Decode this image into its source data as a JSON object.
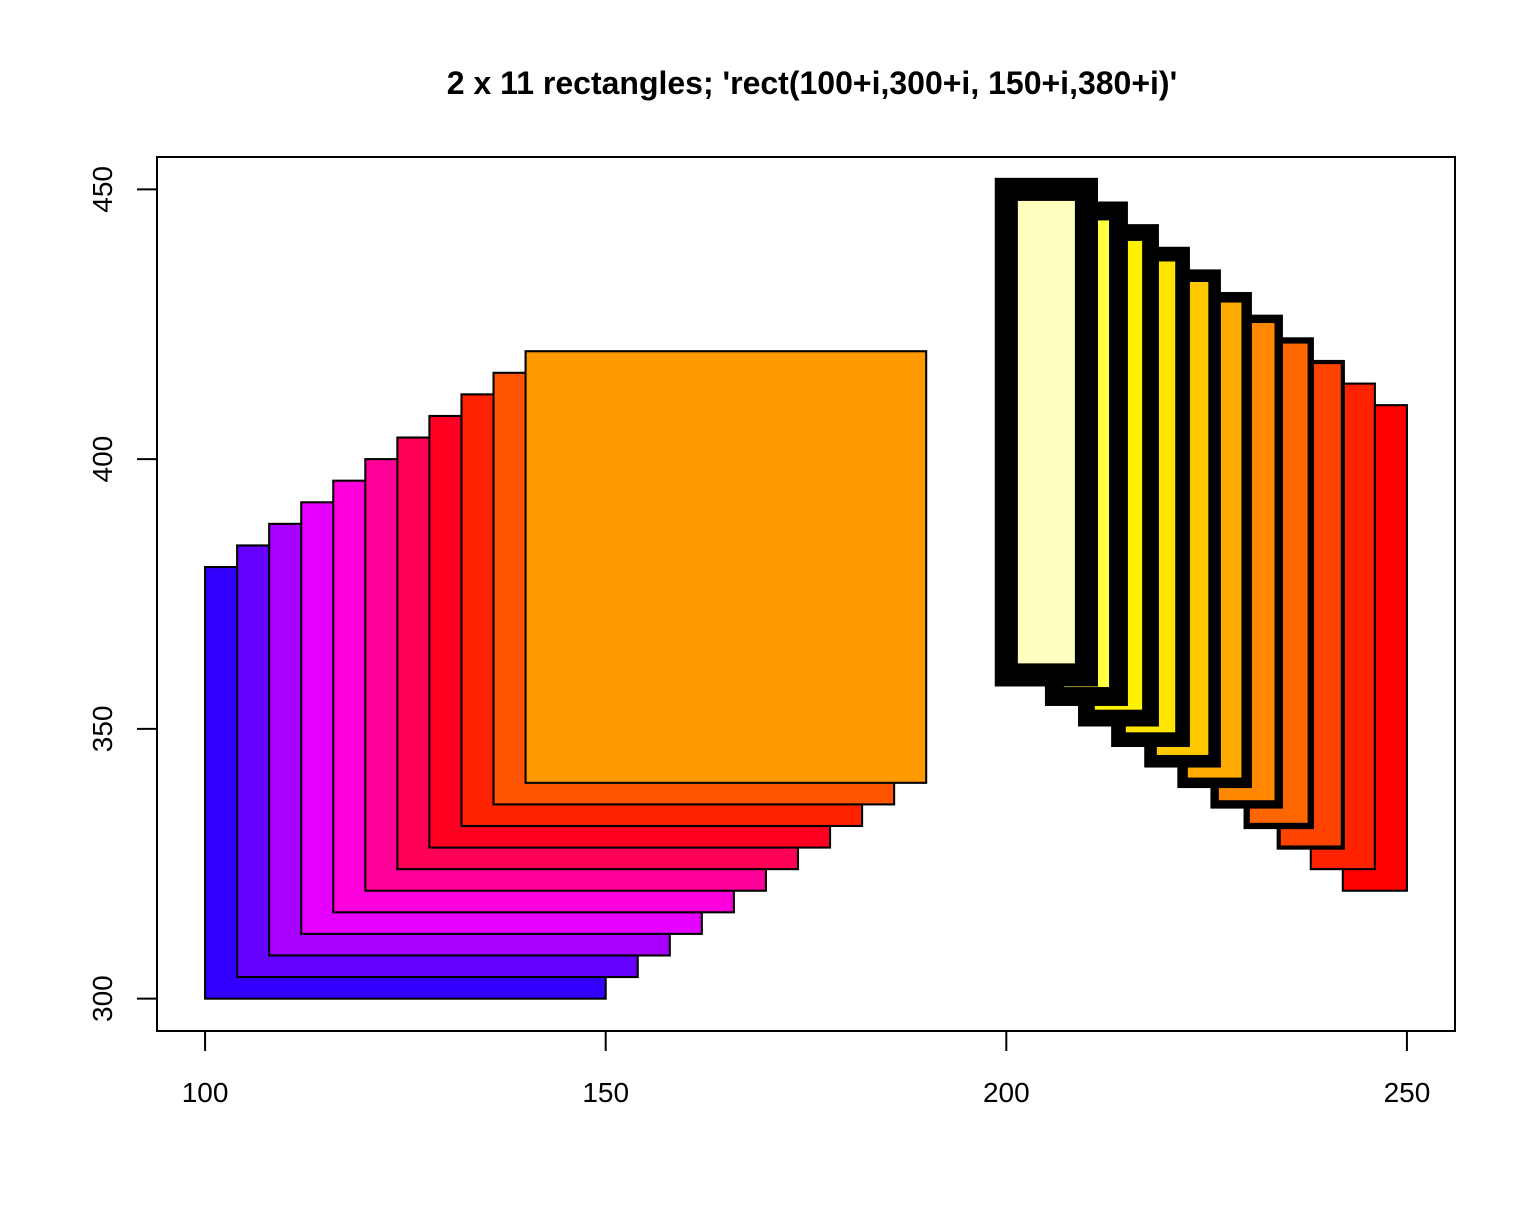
{
  "chart_data": {
    "type": "rect",
    "title": "2 x 11 rectangles; 'rect(100+i,300+i, 150+i,380+i)'",
    "xlabel": "",
    "ylabel": "",
    "xlim": [
      94,
      256
    ],
    "ylim": [
      294,
      456
    ],
    "x_ticks": [
      100,
      150,
      200,
      250
    ],
    "y_ticks": [
      300,
      350,
      400,
      450
    ],
    "x_tick_labels": [
      "100",
      "150",
      "200",
      "250"
    ],
    "y_tick_labels": [
      "300",
      "350",
      "400",
      "450"
    ],
    "grid": false,
    "series": [
      {
        "rects": [
          {
            "x0": 100,
            "y0": 300,
            "x1": 150,
            "y1": 380,
            "fill": "#3300FF"
          },
          {
            "x0": 104,
            "y0": 304,
            "x1": 154,
            "y1": 384,
            "fill": "#6600FF"
          },
          {
            "x0": 108,
            "y0": 308,
            "x1": 158,
            "y1": 388,
            "fill": "#AA00FF"
          },
          {
            "x0": 112,
            "y0": 312,
            "x1": 162,
            "y1": 392,
            "fill": "#E600FF"
          },
          {
            "x0": 116,
            "y0": 316,
            "x1": 166,
            "y1": 396,
            "fill": "#FF00DD"
          },
          {
            "x0": 120,
            "y0": 320,
            "x1": 170,
            "y1": 400,
            "fill": "#FF0099"
          },
          {
            "x0": 124,
            "y0": 324,
            "x1": 174,
            "y1": 404,
            "fill": "#FF0055"
          },
          {
            "x0": 128,
            "y0": 328,
            "x1": 178,
            "y1": 408,
            "fill": "#FF0022"
          },
          {
            "x0": 132,
            "y0": 332,
            "x1": 182,
            "y1": 412,
            "fill": "#FF2200"
          },
          {
            "x0": 136,
            "y0": 336,
            "x1": 186,
            "y1": 416,
            "fill": "#FF5500"
          },
          {
            "x0": 140,
            "y0": 340,
            "x1": 190,
            "y1": 420,
            "fill": "#FF9900"
          }
        ],
        "border_width": 1
      },
      {
        "rects": [
          {
            "x0": 242,
            "y0": 320,
            "x1": 250,
            "y1": 410,
            "fill": "#FF0000",
            "lwd": 1
          },
          {
            "x0": 238,
            "y0": 324,
            "x1": 246,
            "y1": 414,
            "fill": "#FF2200",
            "lwd": 1
          },
          {
            "x0": 234,
            "y0": 328,
            "x1": 242,
            "y1": 418,
            "fill": "#FF4400",
            "lwd": 2
          },
          {
            "x0": 230,
            "y0": 332,
            "x1": 238,
            "y1": 422,
            "fill": "#FF6600",
            "lwd": 3
          },
          {
            "x0": 226,
            "y0": 336,
            "x1": 234,
            "y1": 426,
            "fill": "#FF8800",
            "lwd": 4
          },
          {
            "x0": 222,
            "y0": 340,
            "x1": 230,
            "y1": 430,
            "fill": "#FFAA00",
            "lwd": 5
          },
          {
            "x0": 218,
            "y0": 344,
            "x1": 226,
            "y1": 434,
            "fill": "#FFC800",
            "lwd": 6
          },
          {
            "x0": 214,
            "y0": 348,
            "x1": 222,
            "y1": 438,
            "fill": "#FFE600",
            "lwd": 7
          },
          {
            "x0": 210,
            "y0": 352,
            "x1": 218,
            "y1": 442,
            "fill": "#FFF200",
            "lwd": 8
          },
          {
            "x0": 206,
            "y0": 356,
            "x1": 214,
            "y1": 446,
            "fill": "#FFFF40",
            "lwd": 9
          },
          {
            "x0": 200,
            "y0": 360,
            "x1": 210,
            "y1": 450,
            "fill": "#FFFFC0",
            "lwd": 11
          }
        ]
      }
    ]
  }
}
